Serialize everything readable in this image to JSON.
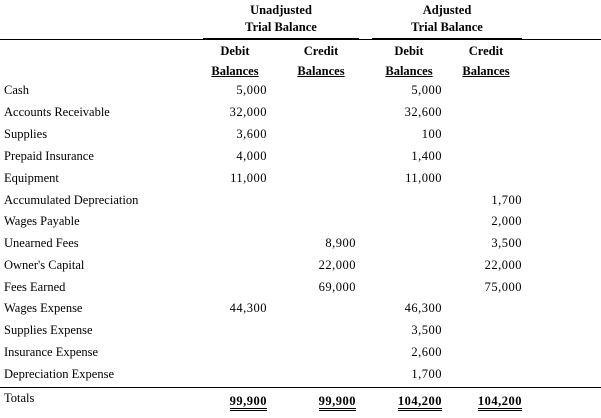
{
  "headers": {
    "unadjusted_line1": "Unadjusted",
    "unadjusted_line2": "Trial Balance",
    "adjusted_line1": "Adjusted",
    "adjusted_line2": "Trial Balance",
    "debit_top": "Debit",
    "debit_bottom": "Balances",
    "credit_top": "Credit",
    "credit_bottom": "Balances"
  },
  "rows": [
    {
      "account": "Cash",
      "ut_debit": "5,000",
      "ut_credit": "",
      "at_debit": "5,000",
      "at_credit": ""
    },
    {
      "account": "Accounts Receivable",
      "ut_debit": "32,000",
      "ut_credit": "",
      "at_debit": "32,600",
      "at_credit": ""
    },
    {
      "account": "Supplies",
      "ut_debit": "3,600",
      "ut_credit": "",
      "at_debit": "100",
      "at_credit": ""
    },
    {
      "account": "Prepaid Insurance",
      "ut_debit": "4,000",
      "ut_credit": "",
      "at_debit": "1,400",
      "at_credit": ""
    },
    {
      "account": "Equipment",
      "ut_debit": "11,000",
      "ut_credit": "",
      "at_debit": "11,000",
      "at_credit": ""
    },
    {
      "account": "Accumulated Depreciation",
      "ut_debit": "",
      "ut_credit": "",
      "at_debit": "",
      "at_credit": "1,700"
    },
    {
      "account": "Wages Payable",
      "ut_debit": "",
      "ut_credit": "",
      "at_debit": "",
      "at_credit": "2,000"
    },
    {
      "account": "Unearned Fees",
      "ut_debit": "",
      "ut_credit": "8,900",
      "at_debit": "",
      "at_credit": "3,500"
    },
    {
      "account": "Owner's Capital",
      "ut_debit": "",
      "ut_credit": "22,000",
      "at_debit": "",
      "at_credit": "22,000"
    },
    {
      "account": "Fees Earned",
      "ut_debit": "",
      "ut_credit": "69,000",
      "at_debit": "",
      "at_credit": "75,000"
    },
    {
      "account": "Wages Expense",
      "ut_debit": "44,300",
      "ut_credit": "",
      "at_debit": "46,300",
      "at_credit": ""
    },
    {
      "account": "Supplies Expense",
      "ut_debit": "",
      "ut_credit": "",
      "at_debit": "3,500",
      "at_credit": ""
    },
    {
      "account": "Insurance Expense",
      "ut_debit": "",
      "ut_credit": "",
      "at_debit": "2,600",
      "at_credit": ""
    },
    {
      "account": "Depreciation Expense",
      "ut_debit": "",
      "ut_credit": "",
      "at_debit": "1,700",
      "at_credit": ""
    }
  ],
  "totals": {
    "label": "Totals",
    "ut_debit": "99,900",
    "ut_credit": "99,900",
    "at_debit": "104,200",
    "at_credit": "104,200"
  }
}
